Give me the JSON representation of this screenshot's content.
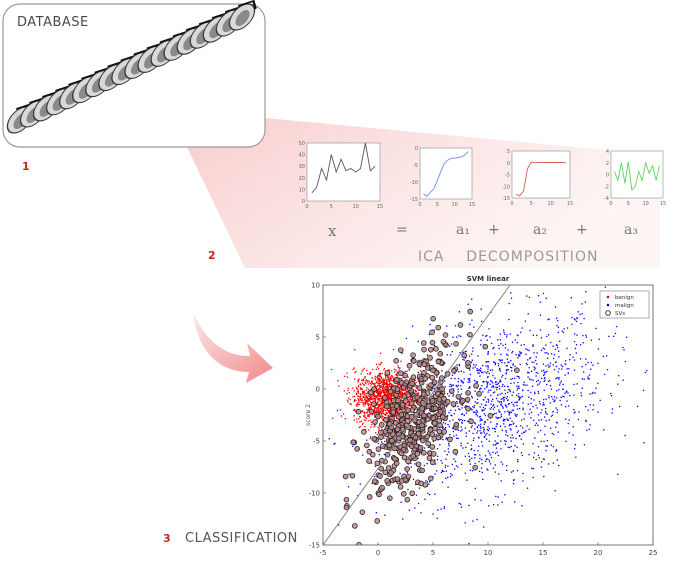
{
  "database": {
    "title": "DATABASE"
  },
  "steps": [
    {
      "number": "1"
    },
    {
      "number": "2",
      "label": "ICA    DECOMPOSITION"
    },
    {
      "number": "3",
      "label": "CLASSIFICATION"
    }
  ],
  "equation": {
    "x": "x",
    "eq": "=",
    "a1": "a₁",
    "plus1": "+",
    "a2": "a₂",
    "plus2": "+",
    "a3": "a₃"
  },
  "colors": {
    "accent_red": "#c0281e",
    "beam_pink": "#f4c9c9",
    "benign": "#ff0000",
    "malign": "#0000ff",
    "svs_edge": "#222222",
    "svs_fill": "#c08a8a",
    "series_x": "#555555",
    "series_a1": "#6f8fe6",
    "series_a2": "#d85a5a",
    "series_a3": "#5fd35f"
  },
  "chart_data": [
    {
      "type": "line",
      "x": [
        1,
        2,
        3,
        4,
        5,
        6,
        7,
        8,
        9,
        10,
        11,
        12,
        13,
        14
      ],
      "series": [
        {
          "values": [
            7,
            12,
            28,
            18,
            40,
            25,
            36,
            26,
            28,
            25,
            28,
            50,
            26,
            30
          ]
        }
      ],
      "xlim": [
        0,
        15
      ],
      "ylim": [
        0,
        50
      ],
      "xticks": [
        "0",
        "5",
        "10",
        "15"
      ],
      "yticks": [
        "0",
        "10",
        "20",
        "30",
        "40",
        "50"
      ]
    },
    {
      "type": "line",
      "x": [
        1,
        2,
        3,
        4,
        5,
        6,
        7,
        8,
        9,
        10,
        11,
        12,
        13,
        14
      ],
      "series": [
        {
          "values": [
            -13.5,
            -14.2,
            -13.0,
            -12.0,
            -9.5,
            -7.0,
            -4.5,
            -3.6,
            -3.0,
            -3.0,
            -2.8,
            -2.6,
            -2.0,
            -1.0
          ]
        }
      ],
      "xlim": [
        0,
        15
      ],
      "ylim": [
        -15,
        0
      ],
      "xticks": [
        "0",
        "5",
        "10",
        "15"
      ],
      "yticks": [
        "-15",
        "-10",
        "-5",
        "0"
      ]
    },
    {
      "type": "line",
      "x": [
        1,
        2,
        3,
        4,
        5,
        6,
        7,
        8,
        9,
        10,
        11,
        12,
        13,
        14
      ],
      "series": [
        {
          "values": [
            -13.5,
            -14.0,
            -12.0,
            -2.5,
            0.3,
            0.0,
            0.2,
            0.1,
            0.1,
            0.1,
            0.1,
            0.1,
            0.1,
            0.0
          ]
        }
      ],
      "xlim": [
        0,
        15
      ],
      "ylim": [
        -15,
        5
      ],
      "xticks": [
        "0",
        "5",
        "10",
        "15"
      ],
      "yticks": [
        "-15",
        "-10",
        "-5",
        "0",
        "5"
      ]
    },
    {
      "type": "line",
      "x": [
        1,
        2,
        3,
        4,
        5,
        6,
        7,
        8,
        9,
        10,
        11,
        12,
        13,
        14
      ],
      "series": [
        {
          "values": [
            0.5,
            -1.0,
            2.0,
            -1.5,
            2.2,
            -2.6,
            -2.0,
            0.5,
            -1.0,
            2.0,
            0.2,
            1.5,
            -1.0,
            1.5
          ]
        }
      ],
      "xlim": [
        0,
        15
      ],
      "ylim": [
        -4,
        4
      ],
      "xticks": [
        "0",
        "5",
        "10",
        "15"
      ],
      "yticks": [
        "-4",
        "-2",
        "0",
        "2",
        "4"
      ]
    },
    {
      "type": "scatter",
      "title": "SVM linear",
      "ylabel": "score 2",
      "xlabel": "",
      "xlim": [
        -5,
        25
      ],
      "ylim": [
        -15,
        10
      ],
      "xticks": [
        "-5",
        "0",
        "5",
        "10",
        "15",
        "20",
        "25"
      ],
      "yticks": [
        "-15",
        "-10",
        "-5",
        "0",
        "5",
        "10"
      ],
      "legend_position": "top-right",
      "grid": false,
      "series": [
        {
          "name": "benign",
          "marker": "dot",
          "color": "#ff0000",
          "center": [
            0.8,
            -0.8
          ],
          "spread": [
            1.5,
            1.3
          ],
          "approx_count": 1500
        },
        {
          "name": "malign",
          "marker": "dot",
          "color": "#0000ff",
          "center": [
            10.5,
            -1.5
          ],
          "spread": [
            5.0,
            4.0
          ],
          "approx_count": 1400
        },
        {
          "name": "SVs",
          "marker": "circle",
          "color": "#222222",
          "center": [
            3.2,
            -3.0
          ],
          "spread": [
            2.2,
            3.0
          ],
          "approx_count": 450
        }
      ],
      "decision_line": {
        "x": [
          -5,
          12
        ],
        "y": [
          -15,
          10
        ]
      }
    }
  ]
}
